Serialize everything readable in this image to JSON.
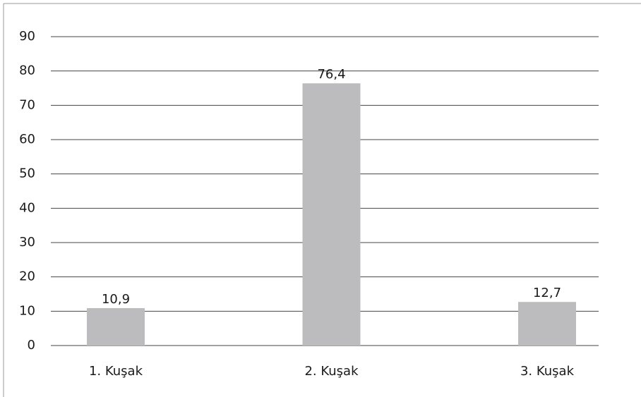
{
  "chart_data": {
    "type": "bar",
    "categories": [
      "1. Kuşak",
      "2. Kuşak",
      "3. Kuşak"
    ],
    "values": [
      10.9,
      76.4,
      12.7
    ],
    "value_labels": [
      "10,9",
      "76,4",
      "12,7"
    ],
    "color": "#bcbcbe",
    "ylim": [
      0,
      90
    ],
    "yticks": [
      0,
      10,
      20,
      30,
      40,
      50,
      60,
      70,
      80,
      90
    ],
    "grid": true
  }
}
